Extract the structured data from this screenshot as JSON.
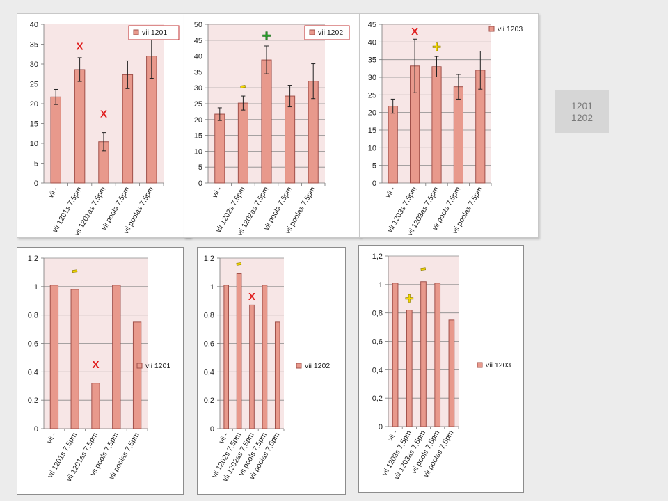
{
  "colors": {
    "bar_fill": "#e8998c",
    "bar_stroke": "#a0504a",
    "plot_bg": "#f7e6e6",
    "mark_x": "#e02020",
    "mark_plus_green": "#2aa02a",
    "mark_plus_yellow": "#f5d800",
    "mark_minus_yellow": "#f5d800"
  },
  "side_note": {
    "line1": "1201",
    "line2": "1202"
  },
  "chart_data": [
    {
      "type": "bar",
      "legend": "vii 1201",
      "legend_box": true,
      "categories": [
        "vii -",
        "vii 1201s 7,5pm",
        "vii 1201as 7,5pm",
        "vii pools 7,5pm",
        "vii poolas 7,5pm"
      ],
      "values": [
        21.7,
        28.6,
        10.4,
        27.3,
        32.0
      ],
      "errors": [
        1.9,
        3.0,
        2.3,
        3.5,
        5.6
      ],
      "ylim": [
        0,
        40
      ],
      "yticks": [
        "0",
        "5",
        "10",
        "15",
        "20",
        "25",
        "30",
        "35",
        "40"
      ],
      "grid": false,
      "annotations": [
        {
          "symbol": "X",
          "kind": "x",
          "category": 1,
          "y": 34.5
        },
        {
          "symbol": "X",
          "kind": "x",
          "category": 2,
          "y": 17.5
        }
      ]
    },
    {
      "type": "bar",
      "legend": "vii 1202",
      "legend_box": true,
      "categories": [
        "vii -",
        "vii 1202s 7,5pm",
        "vii 1202as 7,5pm",
        "vii pools 7,5pm",
        "vii poolas 7,5pm"
      ],
      "values": [
        21.7,
        25.2,
        38.8,
        27.4,
        32.1
      ],
      "errors": [
        2.0,
        2.2,
        4.4,
        3.4,
        5.5
      ],
      "ylim": [
        0,
        50
      ],
      "yticks": [
        "0",
        "5",
        "10",
        "15",
        "20",
        "25",
        "30",
        "35",
        "40",
        "45",
        "50"
      ],
      "grid": true,
      "annotations": [
        {
          "symbol": "+",
          "kind": "plus-green",
          "category": 2,
          "y": 46.3
        },
        {
          "symbol": "-",
          "kind": "minus-yellow",
          "category": 1,
          "y": 30.0
        }
      ]
    },
    {
      "type": "bar",
      "legend": "vii 1203",
      "legend_box": false,
      "categories": [
        "vii -",
        "vii 1203s 7,5pm",
        "vii 1203as 7,5pm",
        "vii pools 7,5pm",
        "vii poolas 7,5pm"
      ],
      "values": [
        21.8,
        33.2,
        33.0,
        27.3,
        32.0
      ],
      "errors": [
        2.0,
        7.6,
        2.9,
        3.5,
        5.4
      ],
      "ylim": [
        0,
        45
      ],
      "yticks": [
        "0",
        "5",
        "10",
        "15",
        "20",
        "25",
        "30",
        "35",
        "40",
        "45"
      ],
      "grid": true,
      "annotations": [
        {
          "symbol": "X",
          "kind": "x",
          "category": 1,
          "y": 43.0
        },
        {
          "symbol": "+",
          "kind": "plus-yellow",
          "category": 2,
          "y": 38.5
        }
      ]
    },
    {
      "type": "bar",
      "legend": "vii 1201",
      "legend_box": false,
      "categories": [
        "vii -",
        "vii 1201s 7,5pm",
        "vii 1201as 7,5pm",
        "vii pools 7,5pm",
        "vii poolas 7,5pm"
      ],
      "values": [
        1.01,
        0.98,
        0.32,
        1.01,
        0.75
      ],
      "ylim": [
        0,
        1.2
      ],
      "yticks": [
        "0",
        "0,2",
        "0,4",
        "0,6",
        "0,8",
        "1",
        "1,2"
      ],
      "grid": true,
      "annotations": [
        {
          "symbol": "-",
          "kind": "minus-yellow",
          "category": 1,
          "y": 1.1
        },
        {
          "symbol": "X",
          "kind": "x",
          "category": 2,
          "y": 0.45
        }
      ]
    },
    {
      "type": "bar",
      "legend": "vii 1202",
      "legend_box": false,
      "categories": [
        "vii -",
        "vii 1202s 7,5pm",
        "vii 1202as 7,5pm",
        "vii pools 7,5pm",
        "vii poolas 7,5pm"
      ],
      "values": [
        1.01,
        1.09,
        0.87,
        1.01,
        0.75
      ],
      "ylim": [
        0,
        1.2
      ],
      "yticks": [
        "0",
        "0,2",
        "0,4",
        "0,6",
        "0,8",
        "1",
        "1,2"
      ],
      "grid": true,
      "annotations": [
        {
          "symbol": "-",
          "kind": "minus-yellow",
          "category": 1,
          "y": 1.15
        },
        {
          "symbol": "X",
          "kind": "x",
          "category": 2,
          "y": 0.93
        }
      ]
    },
    {
      "type": "bar",
      "legend": "vii 1203",
      "legend_box": false,
      "categories": [
        "vii -",
        "vii 1203s 7,5pm",
        "vii 1203as 7,5pm",
        "vii pools 7,5pm",
        "vii poolas 7,5pm"
      ],
      "values": [
        1.01,
        0.82,
        1.02,
        1.01,
        0.75
      ],
      "ylim": [
        0,
        1.2
      ],
      "yticks": [
        "0",
        "0,2",
        "0,4",
        "0,6",
        "0,8",
        "1",
        "1,2"
      ],
      "grid": true,
      "annotations": [
        {
          "symbol": "-",
          "kind": "minus-yellow",
          "category": 2,
          "y": 1.1
        },
        {
          "symbol": "+",
          "kind": "plus-yellow",
          "category": 1,
          "y": 0.9
        }
      ]
    }
  ]
}
